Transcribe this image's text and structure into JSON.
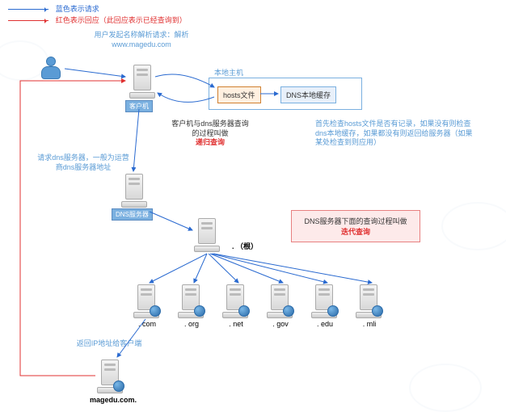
{
  "legend": {
    "blue": {
      "color": "#2a6ad0",
      "text": "蓝色表示请求"
    },
    "red": {
      "color": "#e03030",
      "text": "红色表示回应（此回应表示已经查询到）"
    }
  },
  "user_request": {
    "line1": "用户发起名称解析请求：解析",
    "line2": "www.magedu.com"
  },
  "client": {
    "label": "客户机"
  },
  "local_host": {
    "frame_label": "本地主机",
    "hosts_box": "hosts文件",
    "dns_cache_box": "DNS本地缓存",
    "frame_color": "#7ab0e0",
    "hosts_border": "#d08030",
    "hosts_bg": "#fff0e0",
    "cache_border": "#7ab0e0",
    "cache_bg": "#e8f0fa"
  },
  "hosts_note": {
    "text": "首先检查hosts文件是否有记录，如果没有则检查dns本地缓存，如果都没有则返回给服务器（如果某处检查到则应用）",
    "color": "#5a9bd5"
  },
  "recursive": {
    "line1": "客户机与dns服务器查询",
    "line2": "的过程叫做",
    "line3": "递归查询",
    "highlight_color": "#e03030"
  },
  "isp_note": {
    "line1": "请求dns服务器，一般为运营",
    "line2": "商dns服务器地址",
    "color": "#5a9bd5"
  },
  "dns_server": {
    "label": "DNS服务器",
    "label_bg": "#7ab0e0"
  },
  "root": {
    "label": ". （根）"
  },
  "iterative": {
    "line1": "DNS服务器下面的查询过程叫做",
    "line2": "迭代查询",
    "highlight_color": "#e03030",
    "box_border": "#e88080",
    "box_bg": "#fdeaea"
  },
  "tlds": [
    {
      "label": ". com"
    },
    {
      "label": ". org"
    },
    {
      "label": ". net"
    },
    {
      "label": ". gov"
    },
    {
      "label": ". edu"
    },
    {
      "label": ". mli"
    }
  ],
  "return_note": {
    "text": "返回IP地址给客户端",
    "color": "#5a9bd5"
  },
  "final": {
    "label": "magedu.com."
  },
  "colors": {
    "blue_arrow": "#2a6ad0",
    "red_arrow": "#e03030",
    "text_blue": "#5a9bd5"
  }
}
